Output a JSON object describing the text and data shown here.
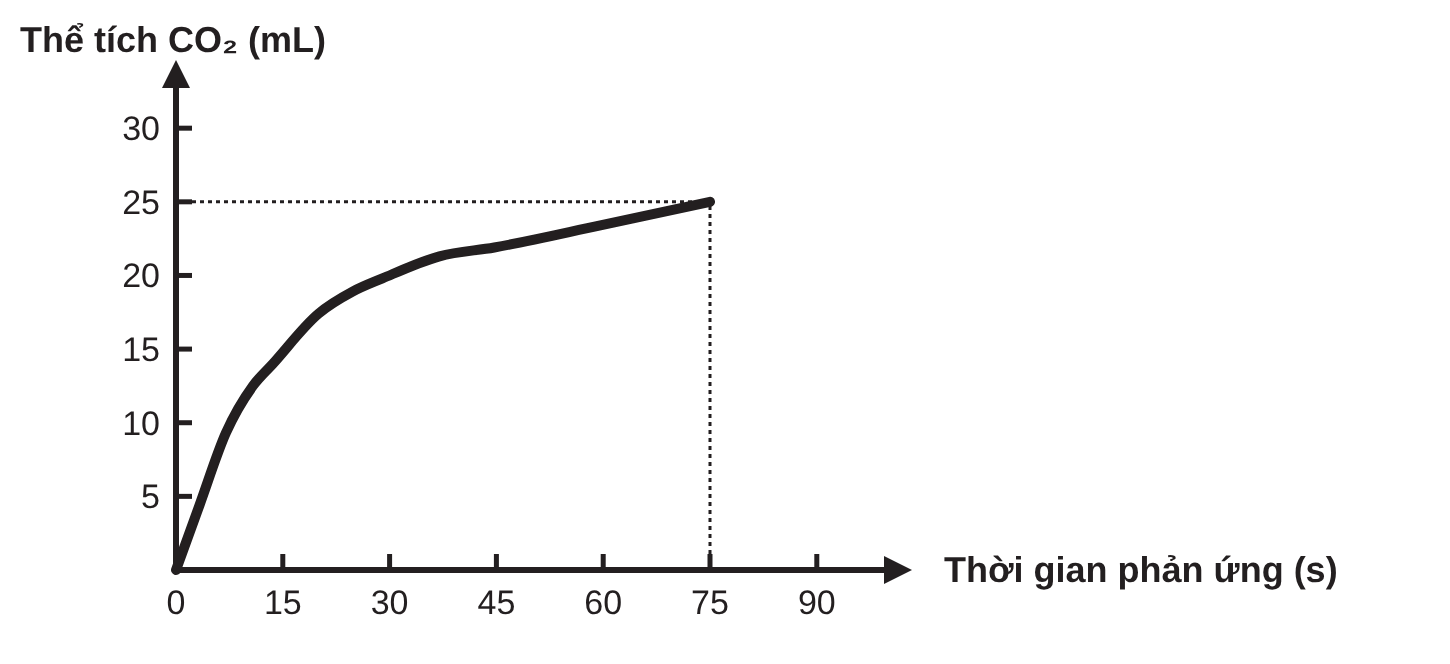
{
  "chart_data": {
    "type": "line",
    "ylabel": "Thể tích CO₂ (mL)",
    "xlabel": "Thời gian phản ứng (s)",
    "x": [
      0,
      3.3,
      7,
      10.8,
      13.6,
      20,
      24.8,
      29,
      37,
      44.7,
      59.6,
      75
    ],
    "series": [
      {
        "color": "#231f20",
        "values": [
          0,
          4.4,
          9.3,
          12.5,
          14,
          17.4,
          18.9,
          19.8,
          21.3,
          21.9,
          23.4,
          25
        ]
      }
    ],
    "xlim": [
      0,
      100
    ],
    "ylim": [
      0,
      33
    ],
    "xticks": [
      0,
      15,
      30,
      45,
      60,
      75,
      90
    ],
    "yticks": [
      5,
      10,
      15,
      20,
      25,
      30
    ],
    "ref_lines": [
      {
        "axis": "y",
        "value": 25,
        "line_style": "dotted"
      },
      {
        "axis": "x",
        "value": 75,
        "line_style": "dotted"
      }
    ],
    "grid": false,
    "marker": "none",
    "line_style": "solid"
  }
}
